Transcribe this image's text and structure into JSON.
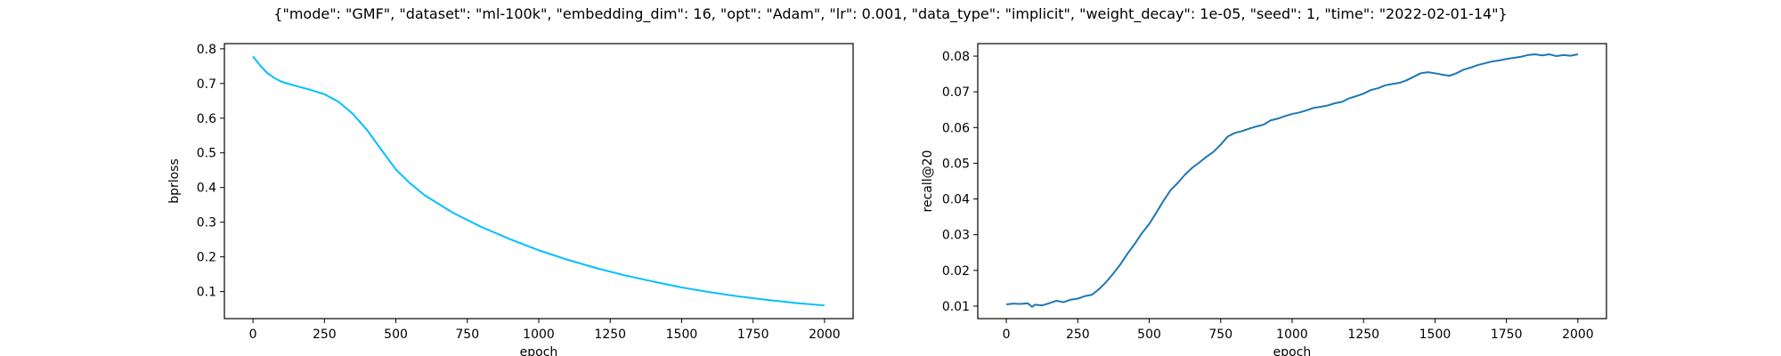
{
  "figure": {
    "title": "{\"mode\": \"GMF\", \"dataset\": \"ml-100k\", \"embedding_dim\": 16, \"opt\": \"Adam\", \"lr\": 0.001, \"data_type\": \"implicit\", \"weight_decay\": 1e-05, \"seed\": 1, \"time\": \"2022-02-01-14\"}"
  },
  "chart_data": [
    {
      "type": "line",
      "xlabel": "epoch",
      "ylabel": "bprloss",
      "xlim": [
        -100,
        2100
      ],
      "ylim": [
        0.022,
        0.815
      ],
      "xticks": [
        0,
        250,
        500,
        750,
        1000,
        1250,
        1500,
        1750,
        2000
      ],
      "yticks": [
        0.1,
        0.2,
        0.3,
        0.4,
        0.5,
        0.6,
        0.7,
        0.8
      ],
      "grid": false,
      "line_color": "#00bfff",
      "series": [
        {
          "x": [
            0,
            25,
            50,
            75,
            100,
            150,
            200,
            250,
            300,
            350,
            400,
            450,
            500,
            550,
            600,
            700,
            800,
            900,
            1000,
            1100,
            1200,
            1300,
            1400,
            1500,
            1600,
            1700,
            1800,
            1900,
            2000
          ],
          "values": [
            0.778,
            0.752,
            0.73,
            0.716,
            0.705,
            0.693,
            0.682,
            0.669,
            0.647,
            0.612,
            0.565,
            0.508,
            0.452,
            0.412,
            0.378,
            0.327,
            0.286,
            0.251,
            0.219,
            0.192,
            0.168,
            0.147,
            0.129,
            0.112,
            0.098,
            0.086,
            0.076,
            0.067,
            0.06
          ]
        }
      ]
    },
    {
      "type": "line",
      "xlabel": "epoch",
      "ylabel": "recall@20",
      "xlim": [
        -100,
        2100
      ],
      "ylim": [
        0.0065,
        0.0835
      ],
      "xticks": [
        0,
        250,
        500,
        750,
        1000,
        1250,
        1500,
        1750,
        2000
      ],
      "yticks": [
        0.01,
        0.02,
        0.03,
        0.04,
        0.05,
        0.06,
        0.07,
        0.08
      ],
      "grid": false,
      "line_color": "#1f77b4",
      "series": [
        {
          "x": [
            0,
            25,
            50,
            75,
            90,
            100,
            125,
            150,
            175,
            200,
            225,
            250,
            275,
            300,
            325,
            350,
            375,
            400,
            425,
            450,
            475,
            500,
            525,
            550,
            575,
            600,
            625,
            650,
            675,
            700,
            725,
            750,
            775,
            800,
            825,
            850,
            875,
            900,
            925,
            950,
            975,
            1000,
            1025,
            1050,
            1075,
            1100,
            1125,
            1150,
            1175,
            1200,
            1225,
            1250,
            1275,
            1300,
            1325,
            1350,
            1375,
            1400,
            1425,
            1450,
            1475,
            1500,
            1525,
            1550,
            1575,
            1600,
            1625,
            1650,
            1675,
            1700,
            1725,
            1750,
            1775,
            1800,
            1825,
            1850,
            1875,
            1900,
            1925,
            1950,
            1975,
            2000
          ],
          "values": [
            0.0105,
            0.0107,
            0.0106,
            0.0108,
            0.0098,
            0.0104,
            0.0102,
            0.0108,
            0.0115,
            0.0111,
            0.0118,
            0.0121,
            0.0128,
            0.0132,
            0.0148,
            0.0168,
            0.0192,
            0.0218,
            0.0248,
            0.0275,
            0.0305,
            0.033,
            0.0362,
            0.0395,
            0.0425,
            0.0445,
            0.0468,
            0.0487,
            0.0502,
            0.0518,
            0.0532,
            0.0552,
            0.0575,
            0.0585,
            0.059,
            0.0597,
            0.0603,
            0.0608,
            0.062,
            0.0625,
            0.0632,
            0.0638,
            0.0642,
            0.0648,
            0.0655,
            0.0658,
            0.0662,
            0.0668,
            0.0672,
            0.0682,
            0.0688,
            0.0695,
            0.0705,
            0.071,
            0.0718,
            0.0722,
            0.0725,
            0.0732,
            0.0742,
            0.0752,
            0.0755,
            0.0752,
            0.0748,
            0.0745,
            0.0752,
            0.0762,
            0.0768,
            0.0775,
            0.078,
            0.0785,
            0.0788,
            0.0792,
            0.0795,
            0.0798,
            0.0803,
            0.0805,
            0.0802,
            0.0805,
            0.08,
            0.0803,
            0.0801,
            0.0805
          ]
        }
      ]
    }
  ]
}
